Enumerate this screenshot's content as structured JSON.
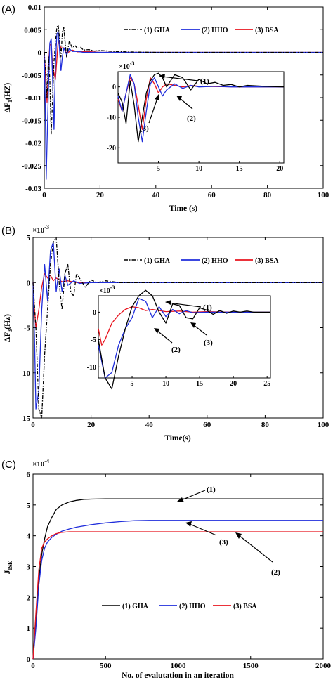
{
  "colors": {
    "gha": "#000000",
    "hho": "#1f2ddb",
    "bsa": "#e8141e"
  },
  "chart_data": [
    {
      "type": "line",
      "panel_label": "(A)",
      "xlabel": "Time (s)",
      "ylabel": "ΔF",
      "ylabel_sub": "1",
      "ylabel_unit": "(HZ)",
      "xlim": [
        0,
        100
      ],
      "ylim": [
        -0.03,
        0.01
      ],
      "xticks": [
        "0",
        "20",
        "40",
        "60",
        "80",
        "100"
      ],
      "yticks": [
        "0.01",
        "0.005",
        "0",
        "-0.005",
        "-0.01",
        "-0.015",
        "-0.02",
        "-0.025",
        "-0.03"
      ],
      "legend": [
        "(1) GHA",
        "(2) HHO",
        "(3) BSA"
      ],
      "legend_position": "top-right",
      "series": [
        {
          "name": "(1) GHA",
          "style": "dash-dot",
          "x": [
            0,
            0.5,
            1,
            1.5,
            2,
            2.5,
            3,
            3.5,
            4,
            4.5,
            5,
            5.5,
            6,
            6.5,
            7,
            7.5,
            8,
            9,
            10,
            11,
            12,
            13,
            14,
            16,
            18,
            20,
            25,
            30,
            40,
            100
          ],
          "y": [
            0,
            -0.004,
            -0.01,
            -0.001,
            -0.006,
            -0.018,
            -0.01,
            -0.002,
            0.002,
            0.0055,
            0.006,
            0.003,
            -0.001,
            0.0045,
            0.0055,
            0.002,
            -0.001,
            0.0025,
            0.001,
            0.0015,
            0.0008,
            0.0012,
            0.0005,
            0.0006,
            0.0003,
            0.0004,
            0.0002,
            0.0001,
            0,
            0
          ]
        },
        {
          "name": "(2) HHO",
          "style": "solid",
          "x": [
            0,
            0.3,
            0.7,
            1,
            1.5,
            2,
            2.5,
            3,
            3.5,
            4,
            4.5,
            5,
            5.5,
            6,
            6.5,
            7,
            8,
            9,
            10,
            12,
            14,
            20,
            100
          ],
          "y": [
            0,
            -0.01,
            -0.028,
            -0.02,
            -0.008,
            0.002,
            0.003,
            -0.006,
            -0.017,
            -0.003,
            0.004,
            0.0045,
            0.0005,
            -0.004,
            -0.001,
            0.001,
            -0.0005,
            0.0008,
            0.0002,
            0.0002,
            0,
            0,
            0
          ]
        },
        {
          "name": "(3) BSA",
          "style": "solid",
          "x": [
            0,
            0.5,
            1,
            1.5,
            2,
            2.5,
            3,
            4,
            5,
            6,
            7,
            8,
            10,
            12,
            15,
            20,
            100
          ],
          "y": [
            0,
            -0.006,
            -0.011,
            -0.003,
            0.0015,
            0.002,
            -0.003,
            -0.006,
            0.0025,
            0.001,
            0.001,
            -0.0002,
            0.0005,
            0.0001,
            0.0002,
            0,
            0
          ]
        }
      ],
      "inset": {
        "scale_label": "×10",
        "scale_exp": "-3",
        "xlim": [
          0,
          20.5
        ],
        "ylim": [
          -25,
          5
        ],
        "xticks": [
          "5",
          "10",
          "15",
          "20"
        ],
        "yticks": [
          "0",
          "-10",
          "-20"
        ],
        "series": [
          {
            "name": "(1) GHA",
            "x": [
              0,
              0.5,
              1,
              1.5,
              2,
              2.5,
              3,
              3.5,
              4,
              4.5,
              5,
              5.5,
              6,
              7,
              8,
              9,
              10,
              11,
              12,
              13,
              14,
              15,
              16,
              18,
              20.5
            ],
            "y": [
              -2,
              -5,
              -12,
              2,
              -6,
              -18,
              -10,
              -2,
              2,
              4,
              4.5,
              3,
              0,
              4,
              3,
              -1,
              2.5,
              1,
              1.5,
              0.5,
              0.8,
              0,
              0.5,
              0.2,
              0
            ]
          },
          {
            "name": "(2) HHO",
            "x": [
              0,
              0.5,
              1,
              1.5,
              2,
              2.5,
              3,
              3.5,
              4,
              4.5,
              5,
              5.5,
              6,
              7,
              8,
              9,
              10,
              12,
              14,
              20.5
            ],
            "y": [
              -3,
              -8,
              -2,
              4,
              1,
              -10,
              -18,
              -8,
              1,
              3,
              0,
              -3,
              -1,
              1,
              -0.5,
              0.5,
              0,
              0.2,
              0,
              0
            ]
          },
          {
            "name": "(3) BSA",
            "x": [
              0,
              0.5,
              1,
              1.5,
              2,
              2.5,
              3,
              3.5,
              4,
              4.5,
              5,
              5.5,
              6,
              7,
              8,
              9,
              10,
              12,
              15,
              20.5
            ],
            "y": [
              -4,
              -8,
              -2,
              3,
              1,
              -6,
              -14,
              -4,
              3,
              1,
              -2,
              0,
              1,
              0.5,
              0,
              0.5,
              0.2,
              0.1,
              0,
              0
            ]
          }
        ],
        "annotations": [
          "(1)",
          "(2)",
          "(3)"
        ]
      }
    },
    {
      "type": "line",
      "panel_label": "(B)",
      "xlabel": "Time(s)",
      "ylabel": "ΔF",
      "ylabel_sub": "3",
      "ylabel_unit": "(Hz)",
      "scale_label": "×10",
      "scale_exp": "-3",
      "xlim": [
        0,
        100
      ],
      "ylim": [
        -15,
        5
      ],
      "xticks": [
        "0",
        "20",
        "40",
        "60",
        "80",
        "100"
      ],
      "yticks": [
        "5",
        "0",
        "-5",
        "-10",
        "-15"
      ],
      "legend": [
        "(1) GHA",
        "(2) HHO",
        "(3) BSA"
      ],
      "legend_position": "top-right",
      "series": [
        {
          "name": "(1) GHA",
          "style": "dash-dot",
          "x": [
            0,
            1,
            2,
            3,
            4,
            5,
            6,
            7,
            8,
            9,
            10,
            11,
            12,
            13,
            14,
            15,
            16,
            18,
            20,
            22,
            25,
            30,
            40,
            100
          ],
          "y": [
            0,
            -5,
            -14,
            -15,
            -8,
            -3,
            2,
            4.5,
            5,
            0,
            -3,
            1,
            2,
            -1,
            -1.5,
            1,
            0.5,
            -0.5,
            0.3,
            0,
            0.2,
            0,
            0,
            0
          ]
        },
        {
          "name": "(2) HHO",
          "style": "solid",
          "x": [
            0,
            0.5,
            1,
            2,
            3,
            4,
            5,
            6,
            7,
            8,
            9,
            10,
            11,
            12,
            14,
            16,
            20,
            25,
            100
          ],
          "y": [
            0,
            -6,
            -14,
            -12,
            -3,
            2,
            -2,
            3.5,
            4.5,
            -1,
            1.5,
            -1,
            0.8,
            -0.3,
            0.2,
            -0.1,
            0,
            0,
            0
          ]
        },
        {
          "name": "(3) BSA",
          "style": "solid",
          "x": [
            0,
            0.5,
            1,
            2,
            3,
            4,
            5,
            6,
            7,
            8,
            10,
            12,
            15,
            20,
            100
          ],
          "y": [
            0,
            -3,
            -5,
            -3,
            -0.5,
            1,
            0.5,
            0.8,
            0.2,
            0.5,
            0.1,
            0.2,
            0,
            0,
            0
          ]
        }
      ],
      "inset": {
        "scale_label": "×10",
        "scale_exp": "-3",
        "xlim": [
          0,
          25.5
        ],
        "ylim": [
          -12,
          3
        ],
        "xticks": [
          "5",
          "10",
          "15",
          "20",
          "25"
        ],
        "yticks": [
          "0",
          "-5",
          "-10"
        ],
        "series": [
          {
            "name": "(1) GHA",
            "x": [
              0,
              1,
              2,
              3,
              4,
              5,
              6,
              7,
              8,
              9,
              10,
              11,
              12,
              13,
              14,
              15,
              16,
              17,
              18,
              19,
              20,
              21,
              22,
              23,
              24,
              25.5
            ],
            "y": [
              -5,
              -12,
              -14,
              -8,
              -3,
              1,
              3,
              4,
              3,
              0,
              -2,
              1.5,
              1.2,
              -1,
              -1.2,
              0.8,
              0.4,
              -0.4,
              0.3,
              -0.2,
              0.2,
              0,
              0.2,
              0,
              0,
              0
            ]
          },
          {
            "name": "(2) HHO",
            "x": [
              0,
              1,
              2,
              3,
              4,
              5,
              6,
              7,
              8,
              9,
              10,
              11,
              12,
              13,
              14,
              16,
              18,
              20,
              25.5
            ],
            "y": [
              -6,
              -12,
              -11,
              -6,
              -3,
              -1,
              2.5,
              2,
              -1,
              1,
              -0.8,
              0.5,
              -0.3,
              0.3,
              -0.1,
              0,
              0,
              0,
              0
            ]
          },
          {
            "name": "(3) BSA",
            "x": [
              0,
              0.5,
              1,
              2,
              3,
              4,
              5,
              6,
              7,
              8,
              10,
              12,
              14,
              16,
              20,
              25.5
            ],
            "y": [
              -3,
              -6,
              -5,
              -2,
              -0.5,
              0.5,
              1,
              0.8,
              0.3,
              0.5,
              0.1,
              0.2,
              0,
              0.1,
              0,
              0
            ]
          }
        ],
        "annotations": [
          "(1)",
          "(2)",
          "(3)"
        ]
      }
    },
    {
      "type": "line",
      "panel_label": "(C)",
      "xlabel": "No. of evalutation in an iteration",
      "ylabel": "J",
      "ylabel_sub": "ISE",
      "scale_label": "×10",
      "scale_exp": "-4",
      "xlim": [
        0,
        2000
      ],
      "ylim": [
        0,
        6
      ],
      "xticks": [
        "0",
        "500",
        "1000",
        "1500",
        "2000"
      ],
      "yticks": [
        "6",
        "5",
        "4",
        "3",
        "2",
        "1",
        "0"
      ],
      "legend": [
        "(1) GHA",
        "(2) HHO",
        "(3) BSA"
      ],
      "legend_position": "bottom-center",
      "series": [
        {
          "name": "(1) GHA",
          "style": "solid",
          "x": [
            0,
            20,
            40,
            60,
            80,
            100,
            130,
            160,
            200,
            250,
            300,
            350,
            400,
            500,
            600,
            800,
            1000,
            2000
          ],
          "y": [
            0,
            1.2,
            2.6,
            3.4,
            3.9,
            4.3,
            4.6,
            4.85,
            5.0,
            5.1,
            5.15,
            5.18,
            5.19,
            5.2,
            5.2,
            5.2,
            5.2,
            5.2
          ]
        },
        {
          "name": "(2) HHO",
          "style": "solid",
          "x": [
            0,
            20,
            40,
            60,
            80,
            100,
            130,
            160,
            200,
            250,
            300,
            400,
            500,
            600,
            700,
            800,
            1000,
            2000
          ],
          "y": [
            0,
            1.0,
            2.4,
            3.2,
            3.6,
            3.8,
            3.95,
            4.05,
            4.15,
            4.22,
            4.28,
            4.36,
            4.42,
            4.46,
            4.49,
            4.5,
            4.5,
            4.5
          ]
        },
        {
          "name": "(3) BSA",
          "style": "solid",
          "x": [
            0,
            20,
            40,
            60,
            80,
            100,
            130,
            160,
            200,
            250,
            300,
            2000
          ],
          "y": [
            0,
            1.5,
            2.9,
            3.6,
            3.8,
            3.9,
            4.0,
            4.07,
            4.11,
            4.13,
            4.13,
            4.13
          ]
        }
      ],
      "annotations": [
        "(1)",
        "(2)",
        "(3)"
      ]
    }
  ]
}
